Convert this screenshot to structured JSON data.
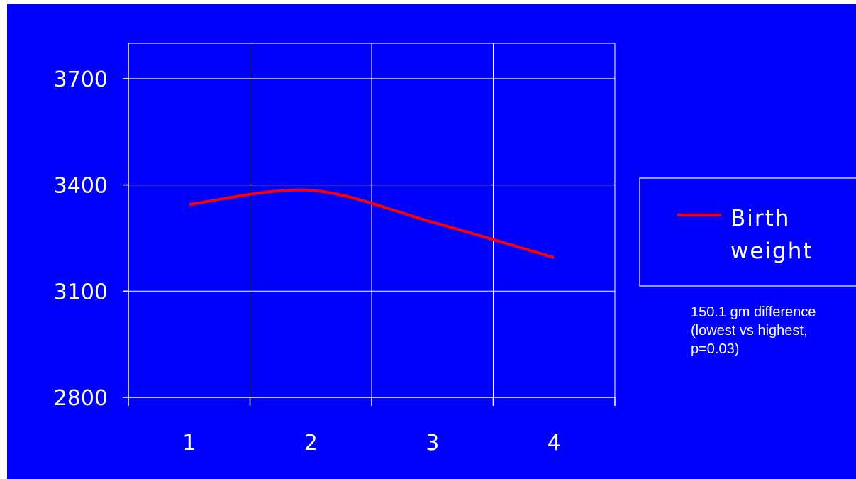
{
  "chart_data": {
    "type": "line",
    "categories": [
      "1",
      "2",
      "3",
      "4"
    ],
    "series": [
      {
        "name": "Birth weight",
        "name_lines": [
          "Birth",
          "weight"
        ],
        "values": [
          3345,
          3385,
          3295,
          3195
        ],
        "color": "#ff0000"
      }
    ],
    "ylim": [
      2800,
      3800
    ],
    "yticks": [
      2800,
      3100,
      3400,
      3700
    ],
    "grid": true,
    "legend_position": "right",
    "annotation_lines": [
      "150.1 gm difference",
      "(lowest vs highest,",
      "p=0.03)"
    ],
    "colors": {
      "background": "#0000ff",
      "grid": "#ffffff",
      "text": "#ffffff",
      "line": "#ff0000"
    }
  }
}
